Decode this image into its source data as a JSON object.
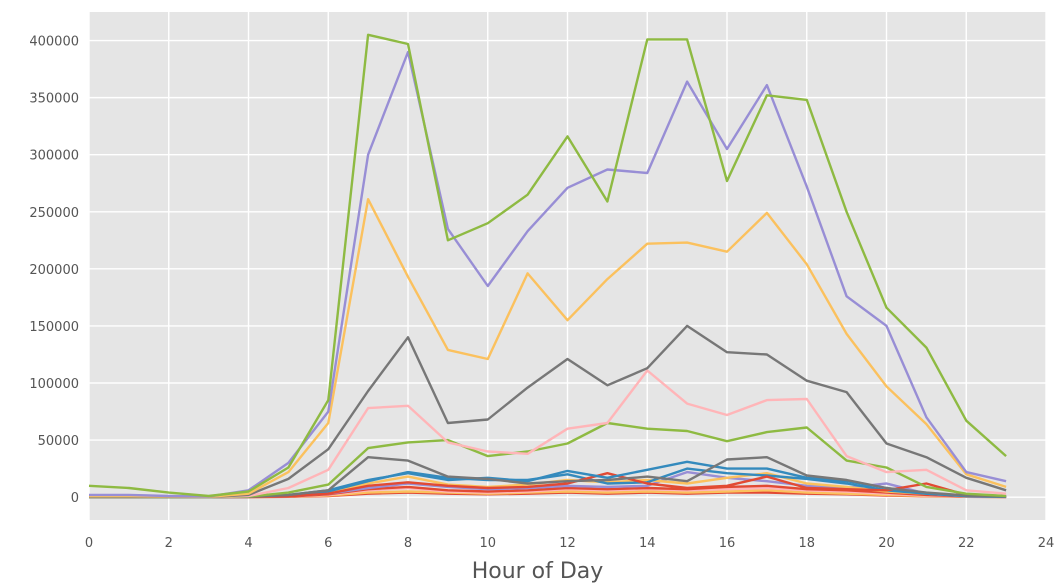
{
  "chart_data": {
    "type": "line",
    "title": "",
    "xlabel": "Hour of Day",
    "ylabel": "",
    "xlim": [
      0,
      24
    ],
    "ylim": [
      -20000,
      425000
    ],
    "x_ticks": [
      0,
      2,
      4,
      6,
      8,
      10,
      12,
      14,
      16,
      18,
      20,
      22,
      24
    ],
    "y_ticks": [
      0,
      50000,
      100000,
      150000,
      200000,
      250000,
      300000,
      350000,
      400000
    ],
    "grid": true,
    "x": [
      0,
      1,
      2,
      3,
      4,
      5,
      6,
      7,
      8,
      9,
      10,
      11,
      12,
      13,
      14,
      15,
      16,
      17,
      18,
      19,
      20,
      21,
      22,
      23
    ],
    "series": [
      {
        "color": "#8EBA42",
        "values": [
          10000,
          8000,
          4000,
          1000,
          5000,
          26000,
          85000,
          405000,
          397000,
          225000,
          240000,
          265000,
          316000,
          259000,
          401000,
          401000,
          277000,
          352000,
          348000,
          250000,
          166000,
          131000,
          67000,
          36000
        ]
      },
      {
        "color": "#988ED5",
        "values": [
          2000,
          2000,
          1000,
          500,
          6000,
          30000,
          75000,
          300000,
          390000,
          235000,
          185000,
          233000,
          271000,
          287000,
          284000,
          364000,
          305000,
          361000,
          272000,
          176000,
          150000,
          70000,
          22000,
          14000
        ]
      },
      {
        "color": "#FBC15E",
        "values": [
          1000,
          1000,
          500,
          300,
          3000,
          22000,
          65000,
          261000,
          193000,
          129000,
          121000,
          196000,
          155000,
          191000,
          222000,
          223000,
          215000,
          249000,
          204000,
          143000,
          97000,
          64000,
          20000,
          9000
        ]
      },
      {
        "color": "#777777",
        "values": [
          500,
          500,
          300,
          200,
          2000,
          16000,
          42000,
          93000,
          140000,
          65000,
          68000,
          96000,
          121000,
          98000,
          113000,
          150000,
          127000,
          125000,
          102000,
          92000,
          47000,
          35000,
          17000,
          6000
        ]
      },
      {
        "color": "#FFB5B8",
        "values": [
          500,
          500,
          300,
          200,
          1000,
          8000,
          24000,
          78000,
          80000,
          48000,
          40000,
          38000,
          60000,
          65000,
          111000,
          82000,
          72000,
          85000,
          86000,
          36000,
          22000,
          24000,
          6000,
          3000
        ]
      },
      {
        "color": "#8EBA42",
        "values": [
          200,
          200,
          100,
          100,
          500,
          4000,
          11000,
          43000,
          48000,
          50000,
          36000,
          40000,
          47000,
          65000,
          60000,
          58000,
          49000,
          57000,
          61000,
          32000,
          26000,
          9000,
          3000,
          1000
        ]
      },
      {
        "color": "#777777",
        "values": [
          100,
          100,
          50,
          50,
          300,
          2000,
          6000,
          35000,
          32000,
          18000,
          16000,
          12000,
          14000,
          15000,
          18000,
          14000,
          33000,
          35000,
          19000,
          15000,
          8000,
          4000,
          1500,
          500
        ]
      },
      {
        "color": "#348ABD",
        "values": [
          200,
          200,
          100,
          100,
          500,
          2000,
          6000,
          15000,
          21000,
          15000,
          17000,
          14000,
          23000,
          17000,
          24000,
          31000,
          25000,
          25000,
          17000,
          14000,
          8000,
          3000,
          1000,
          300
        ]
      },
      {
        "color": "#E24A33",
        "values": [
          100,
          100,
          50,
          50,
          200,
          800,
          3000,
          10000,
          13000,
          10000,
          8000,
          9000,
          12000,
          21000,
          12000,
          8000,
          10000,
          18000,
          8000,
          7000,
          6000,
          12000,
          2000,
          500
        ]
      },
      {
        "color": "#348ABD",
        "values": [
          100,
          100,
          50,
          50,
          200,
          1500,
          5000,
          14000,
          22000,
          17000,
          15000,
          15000,
          20000,
          12000,
          13000,
          25000,
          21000,
          19000,
          16000,
          12000,
          6000,
          3000,
          1000,
          300
        ]
      },
      {
        "color": "#FBC15E",
        "values": [
          100,
          100,
          50,
          50,
          200,
          1000,
          4000,
          12000,
          18000,
          11000,
          9000,
          11000,
          15000,
          13000,
          15000,
          12000,
          17000,
          21000,
          12000,
          9000,
          5000,
          3000,
          1000,
          300
        ]
      },
      {
        "color": "#988ED5",
        "values": [
          100,
          100,
          50,
          50,
          200,
          800,
          3000,
          8000,
          12000,
          9000,
          7000,
          8000,
          10000,
          9000,
          10000,
          22000,
          17000,
          14000,
          10000,
          8000,
          12000,
          3000,
          800,
          200
        ]
      },
      {
        "color": "#E24A33",
        "values": [
          100,
          100,
          50,
          50,
          150,
          600,
          2500,
          7000,
          9000,
          6000,
          5000,
          6000,
          8000,
          7000,
          8000,
          7000,
          9000,
          10000,
          7000,
          6000,
          4000,
          2000,
          700,
          200
        ]
      },
      {
        "color": "#FFB5B8",
        "values": [
          100,
          100,
          50,
          50,
          150,
          500,
          2000,
          6000,
          8000,
          5000,
          4000,
          5000,
          7000,
          6000,
          7000,
          6000,
          7000,
          8000,
          6000,
          5000,
          3000,
          1500,
          500,
          200
        ]
      },
      {
        "color": "#FBC15E",
        "values": [
          50,
          50,
          30,
          30,
          100,
          400,
          1500,
          4000,
          5000,
          4000,
          3000,
          4000,
          5000,
          4000,
          5000,
          4000,
          5000,
          6000,
          4000,
          3000,
          2000,
          1000,
          400,
          100
        ]
      },
      {
        "color": "#E24A33",
        "values": [
          50,
          50,
          30,
          30,
          100,
          300,
          1000,
          3000,
          4000,
          3000,
          2500,
          3000,
          4000,
          3000,
          4000,
          3000,
          4000,
          4000,
          3000,
          2500,
          1500,
          800,
          300,
          100
        ]
      }
    ]
  }
}
